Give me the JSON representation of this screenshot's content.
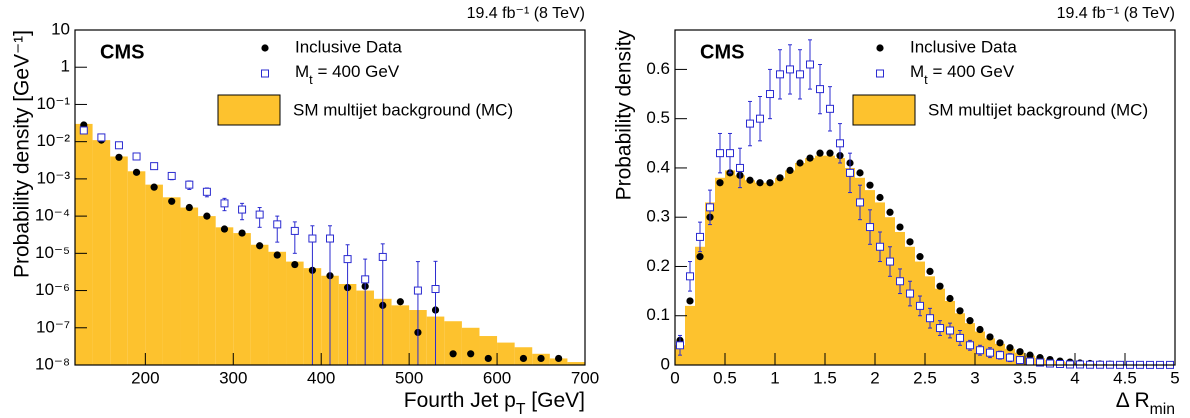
{
  "chart_data": [
    {
      "type": "hist",
      "log_y": true,
      "brand": "CMS",
      "lumi": "19.4 fb⁻¹ (8 TeV)",
      "xlabel": [
        "Fourth Jet p",
        "T",
        " [GeV]"
      ],
      "ylabel": "Probability density [GeV⁻¹]",
      "xlim": [
        120,
        700
      ],
      "xticks": [
        200,
        300,
        400,
        500,
        600,
        700
      ],
      "ylim": [
        1e-08,
        10
      ],
      "yticks": [
        {
          "value": 1e-08,
          "label": "10⁻⁸"
        },
        {
          "value": 1e-07,
          "label": "10⁻⁷"
        },
        {
          "value": 1e-06,
          "label": "10⁻⁶"
        },
        {
          "value": 1e-05,
          "label": "10⁻⁵"
        },
        {
          "value": 0.0001,
          "label": "10⁻⁴"
        },
        {
          "value": 0.001,
          "label": "10⁻³"
        },
        {
          "value": 0.01,
          "label": "10⁻²"
        },
        {
          "value": 0.1,
          "label": "10⁻¹"
        },
        1,
        10
      ],
      "x": [
        130,
        150,
        170,
        190,
        210,
        230,
        250,
        270,
        290,
        310,
        330,
        350,
        370,
        390,
        410,
        430,
        450,
        470,
        490,
        510,
        530,
        550,
        570,
        590,
        610,
        630,
        650,
        670,
        690
      ],
      "series": [
        {
          "name": "SM multijet background (MC)",
          "color": "#fdc22e",
          "style": "hist",
          "values": [
            0.03,
            0.011,
            0.004,
            0.0016,
            0.0007,
            0.00032,
            0.00017,
            0.0001,
            5e-05,
            3.5e-05,
            1.7e-05,
            1.1e-05,
            6e-06,
            4e-06,
            2.5e-06,
            1.5e-06,
            1e-06,
            6e-07,
            4e-07,
            3e-07,
            2e-07,
            1.5e-07,
            1e-07,
            6e-08,
            4e-08,
            3e-08,
            2e-08,
            1.5e-08,
            1.2e-08
          ]
        },
        {
          "name": "Inclusive Data",
          "color": "#000000",
          "style": "dot",
          "values": [
            0.028,
            0.011,
            0.0038,
            0.0015,
            0.0006,
            0.00025,
            0.00017,
            0.0001,
            4.5e-05,
            3.5e-05,
            1.6e-05,
            9e-06,
            5e-06,
            3.5e-06,
            2.5e-06,
            1.2e-06,
            1.3e-06,
            4e-07,
            5e-07,
            7.5e-08,
            3e-07,
            2e-08,
            2e-08,
            1.5e-08,
            null,
            1.5e-08,
            1.5e-08,
            1.5e-08,
            null
          ]
        },
        {
          "name": [
            "M",
            "t",
            " = 400 GeV"
          ],
          "color": "#2b2bd0",
          "style": "square",
          "values": [
            0.02,
            0.013,
            0.008,
            0.004,
            0.0022,
            0.0012,
            0.0007,
            0.00045,
            0.00022,
            0.00015,
            0.00011,
            6e-05,
            4e-05,
            2.5e-05,
            2.5e-05,
            7e-06,
            2e-06,
            8e-06,
            null,
            1e-06,
            1.1e-06,
            null,
            null,
            null,
            null,
            null,
            null,
            null,
            null
          ],
          "errors": [
            0.002,
            0.0015,
            0.001,
            0.0006,
            0.0004,
            0.00025,
            0.00018,
            0.00012,
            8e-05,
            7e-05,
            6e-05,
            4e-05,
            3e-05,
            3e-05,
            3e-05,
            1e-05,
            5e-06,
            1e-05,
            null,
            5e-06,
            5e-06,
            null,
            null,
            null,
            null,
            null,
            null,
            null,
            null
          ]
        }
      ]
    },
    {
      "type": "hist",
      "log_y": false,
      "brand": "CMS",
      "lumi": "19.4 fb⁻¹ (8 TeV)",
      "xlabel": [
        "Δ R",
        "min"
      ],
      "ylabel": "Probability density",
      "xlim": [
        0,
        5
      ],
      "xticks": [
        0,
        0.5,
        1,
        1.5,
        2,
        2.5,
        3,
        3.5,
        4,
        4.5,
        5
      ],
      "ylim": [
        0,
        0.68
      ],
      "yticks": [
        0,
        0.1,
        0.2,
        0.3,
        0.4,
        0.5,
        0.6
      ],
      "x": [
        0.05,
        0.15,
        0.25,
        0.35,
        0.45,
        0.55,
        0.65,
        0.75,
        0.85,
        0.95,
        1.05,
        1.15,
        1.25,
        1.35,
        1.45,
        1.55,
        1.65,
        1.75,
        1.85,
        1.95,
        2.05,
        2.15,
        2.25,
        2.35,
        2.45,
        2.55,
        2.65,
        2.75,
        2.85,
        2.95,
        3.05,
        3.15,
        3.25,
        3.35,
        3.45,
        3.55,
        3.65,
        3.75,
        3.85,
        3.95,
        4.05,
        4.15,
        4.25,
        4.35,
        4.45,
        4.55,
        4.65,
        4.75,
        4.85,
        4.95
      ],
      "series": [
        {
          "name": "SM multijet background (MC)",
          "color": "#fdc22e",
          "style": "hist",
          "values": [
            0.04,
            0.12,
            0.24,
            0.33,
            0.38,
            0.395,
            0.385,
            0.375,
            0.37,
            0.37,
            0.38,
            0.395,
            0.41,
            0.42,
            0.425,
            0.425,
            0.42,
            0.4,
            0.38,
            0.355,
            0.33,
            0.3,
            0.27,
            0.24,
            0.21,
            0.18,
            0.155,
            0.13,
            0.105,
            0.085,
            0.068,
            0.054,
            0.043,
            0.033,
            0.025,
            0.019,
            0.014,
            0.01,
            0.0075,
            0.0055,
            0.004,
            0.003,
            0.002,
            0.0015,
            0.001,
            0.0008,
            0.0005,
            0.0004,
            0.0003,
            0.0002
          ]
        },
        {
          "name": "Inclusive Data",
          "color": "#000000",
          "style": "dot",
          "values": [
            0.05,
            0.13,
            0.22,
            0.3,
            0.37,
            0.39,
            0.385,
            0.375,
            0.37,
            0.37,
            0.38,
            0.395,
            0.41,
            0.42,
            0.43,
            0.43,
            0.425,
            0.41,
            0.39,
            0.365,
            0.34,
            0.31,
            0.28,
            0.25,
            0.22,
            0.19,
            0.16,
            0.135,
            0.11,
            0.09,
            0.072,
            0.057,
            0.045,
            0.035,
            0.027,
            0.02,
            0.015,
            0.011,
            0.008,
            0.006,
            0.004,
            0.003,
            0.002,
            0.0015,
            0.001,
            0.0008,
            0.0005,
            0.0004,
            0.0003,
            0.0002
          ]
        },
        {
          "name": [
            "M",
            "t",
            " = 400 GeV"
          ],
          "color": "#2b2bd0",
          "style": "square",
          "values": [
            0.04,
            0.18,
            0.26,
            0.32,
            0.43,
            0.43,
            0.4,
            0.49,
            0.5,
            0.55,
            0.59,
            0.6,
            0.59,
            0.61,
            0.56,
            0.52,
            0.45,
            0.39,
            0.33,
            0.28,
            0.24,
            0.21,
            0.17,
            0.145,
            0.12,
            0.095,
            0.075,
            0.07,
            0.055,
            0.04,
            0.03,
            0.025,
            0.02,
            0.015,
            0.01,
            0.007,
            0.005,
            0.003,
            0.002,
            0.001,
            0.001,
            0.0005,
            0.0005,
            0.0005,
            0.0003,
            0.0003,
            0.0003,
            0.0002,
            0.0002,
            0.0002
          ],
          "errors": [
            0.02,
            0.03,
            0.03,
            0.035,
            0.04,
            0.04,
            0.04,
            0.045,
            0.045,
            0.05,
            0.05,
            0.05,
            0.05,
            0.05,
            0.05,
            0.045,
            0.04,
            0.04,
            0.035,
            0.035,
            0.03,
            0.03,
            0.025,
            0.025,
            0.02,
            0.02,
            0.015,
            0.015,
            0.015,
            0.01,
            0.01,
            0.01,
            0.008,
            0.008,
            0.006,
            0.005,
            0.004,
            0.003,
            0.003,
            0.003,
            0.003,
            0.003,
            0.003,
            0.003,
            0.003,
            0.003,
            0.003,
            0.003,
            0.003,
            0.003
          ]
        }
      ]
    }
  ]
}
